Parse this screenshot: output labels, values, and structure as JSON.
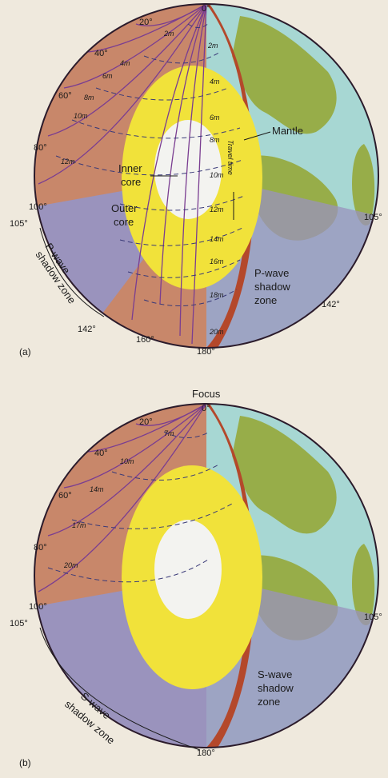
{
  "colors": {
    "page": "#efe9dd",
    "mantle_section": "#c8876a",
    "shadow_section": "#9a93bd",
    "crust_cut": "#b4482b",
    "outer_core": "#f1e23a",
    "inner_core": "#f3f3f0",
    "ocean": "#a7d7d3",
    "land": "#97ad49",
    "ray": "#7a3d91",
    "wavefront": "#3a3a78"
  },
  "panel_a": {
    "caption": "(a)",
    "degrees": {
      "d0": "0°",
      "d20": "20°",
      "d40": "40°",
      "d60": "60°",
      "d80": "80°",
      "d100": "100°",
      "d105_left": "105°",
      "d105_right": "105°",
      "d142_left": "142°",
      "d142_right": "142°",
      "d160": "160°",
      "d180": "180°"
    },
    "travel_times": [
      "2m",
      "4m",
      "6m",
      "8m",
      "10m",
      "12m",
      "14m",
      "16m",
      "18m",
      "20m"
    ],
    "left_travel_times": [
      "2m",
      "4m",
      "6m",
      "8m",
      "10m",
      "12m"
    ],
    "labels": {
      "inner_core": [
        "Inner",
        "core"
      ],
      "outer_core": [
        "Outer",
        "core"
      ],
      "mantle": "Mantle",
      "travel_time": "Travel time",
      "shadow_left": [
        "P-wave",
        "shadow zone"
      ],
      "shadow_right": [
        "P-wave",
        "shadow",
        "zone"
      ]
    }
  },
  "panel_b": {
    "caption": "(b)",
    "focus": "Focus",
    "degrees": {
      "d0": "0°",
      "d20": "20°",
      "d40": "40°",
      "d60": "60°",
      "d80": "80°",
      "d100": "100°",
      "d105_left": "105°",
      "d105_right": "105°",
      "d180": "180°"
    },
    "travel_times": [
      "7m",
      "10m",
      "14m",
      "17m",
      "20m"
    ],
    "labels": {
      "shadow_left": [
        "S-wave",
        "shadow zone"
      ],
      "shadow_right": [
        "S-wave",
        "shadow",
        "zone"
      ]
    }
  }
}
